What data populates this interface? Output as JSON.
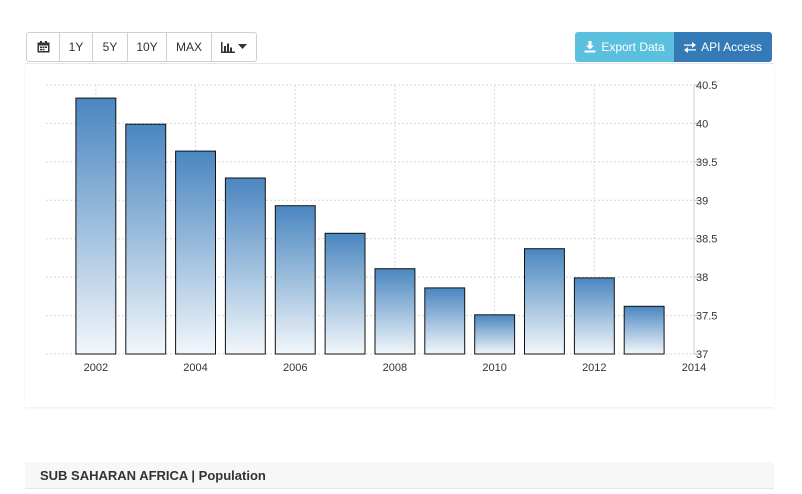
{
  "toolbar": {
    "calendar_icon": "calendar-icon",
    "range_1y": "1Y",
    "range_5y": "5Y",
    "range_10y": "10Y",
    "range_max": "MAX",
    "chart_type_icon": "bar-chart-icon"
  },
  "actions": {
    "export_label": "Export Data",
    "export_icon": "download-icon",
    "export_color": "#5bc0de",
    "api_label": "API Access",
    "api_icon": "swap-arrows-icon",
    "api_color": "#337ab7"
  },
  "footer": {
    "title": "SUB SAHARAN AFRICA | Population"
  },
  "chart_data": {
    "type": "bar",
    "title": "",
    "xlabel": "",
    "ylabel": "",
    "bar_color_top": "#4a86c0",
    "bar_color_bottom": "#f2f7fb",
    "grid": true,
    "y_axis_side": "right",
    "ylim": [
      37,
      40.5
    ],
    "yticks": [
      "37",
      "37.5",
      "38",
      "38.5",
      "39",
      "39.5",
      "40",
      "40.5"
    ],
    "xlim": [
      2001,
      2014
    ],
    "xticks": [
      "2002",
      "2004",
      "2006",
      "2008",
      "2010",
      "2012",
      "2014"
    ],
    "x": [
      2002,
      2003,
      2004,
      2005,
      2006,
      2007,
      2008,
      2009,
      2010,
      2011,
      2012,
      2013
    ],
    "values": [
      40.33,
      39.99,
      39.64,
      39.29,
      38.93,
      38.57,
      38.11,
      37.86,
      37.51,
      38.37,
      37.99,
      37.62
    ]
  }
}
